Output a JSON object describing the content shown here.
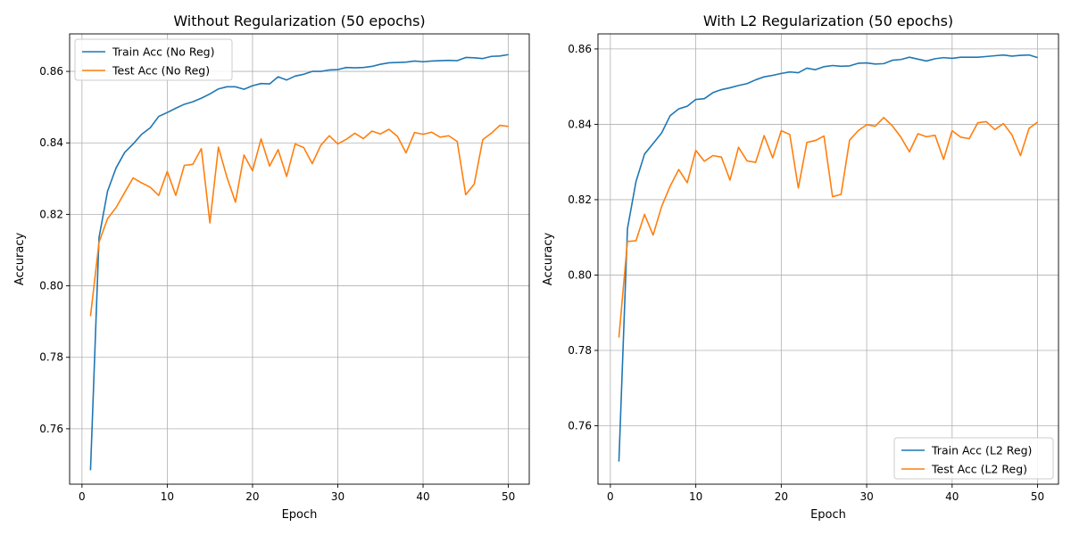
{
  "chart_data": [
    {
      "type": "line",
      "title": "Without Regularization (50 epochs)",
      "xlabel": "Epoch",
      "ylabel": "Accuracy",
      "xlim": [
        -1.45,
        52.45
      ],
      "ylim": [
        0.7445,
        0.8705
      ],
      "xticks": [
        "0",
        "10",
        "20",
        "30",
        "40",
        "50"
      ],
      "xtick_values": [
        0,
        10,
        20,
        30,
        40,
        50
      ],
      "yticks": [
        "0.76",
        "0.78",
        "0.80",
        "0.82",
        "0.84",
        "0.86"
      ],
      "ytick_values": [
        0.76,
        0.78,
        0.8,
        0.82,
        0.84,
        0.86
      ],
      "grid": true,
      "legend_loc": "upper-left",
      "x": [
        1,
        2,
        3,
        4,
        5,
        6,
        7,
        8,
        9,
        10,
        11,
        12,
        13,
        14,
        15,
        16,
        17,
        18,
        19,
        20,
        21,
        22,
        23,
        24,
        25,
        26,
        27,
        28,
        29,
        30,
        31,
        32,
        33,
        34,
        35,
        36,
        37,
        38,
        39,
        40,
        41,
        42,
        43,
        44,
        45,
        46,
        47,
        48,
        49,
        50
      ],
      "series": [
        {
          "name": "Train Acc (No Reg)",
          "color": "#1f77b4",
          "values": [
            0.7484,
            0.8135,
            0.8265,
            0.833,
            0.8373,
            0.8397,
            0.8424,
            0.8442,
            0.8474,
            0.8485,
            0.8497,
            0.8508,
            0.8515,
            0.8525,
            0.8537,
            0.8551,
            0.8557,
            0.8557,
            0.855,
            0.856,
            0.8566,
            0.8565,
            0.8585,
            0.8576,
            0.8587,
            0.8592,
            0.86,
            0.86,
            0.8604,
            0.8605,
            0.8611,
            0.861,
            0.8611,
            0.8614,
            0.862,
            0.8624,
            0.8625,
            0.8626,
            0.8629,
            0.8627,
            0.8629,
            0.863,
            0.8631,
            0.863,
            0.8639,
            0.8638,
            0.8636,
            0.8642,
            0.8643,
            0.8647
          ]
        },
        {
          "name": "Test Acc (No Reg)",
          "color": "#ff7f0e",
          "values": [
            0.7915,
            0.8122,
            0.8188,
            0.8219,
            0.8261,
            0.8302,
            0.8288,
            0.8276,
            0.8253,
            0.832,
            0.8253,
            0.8337,
            0.834,
            0.8384,
            0.8176,
            0.8388,
            0.8304,
            0.8234,
            0.8366,
            0.8322,
            0.8411,
            0.8335,
            0.8381,
            0.8306,
            0.8397,
            0.8387,
            0.8342,
            0.8393,
            0.842,
            0.8397,
            0.841,
            0.8427,
            0.8412,
            0.8433,
            0.8425,
            0.8438,
            0.8418,
            0.8372,
            0.8429,
            0.8424,
            0.843,
            0.8416,
            0.842,
            0.8404,
            0.8255,
            0.8285,
            0.8409,
            0.8427,
            0.8449,
            0.8446
          ]
        }
      ]
    },
    {
      "type": "line",
      "title": "With L2 Regularization (50 epochs)",
      "xlabel": "Epoch",
      "ylabel": "Accuracy",
      "xlim": [
        -1.45,
        52.45
      ],
      "ylim": [
        0.7445,
        0.864
      ],
      "xticks": [
        "0",
        "10",
        "20",
        "30",
        "40",
        "50"
      ],
      "xtick_values": [
        0,
        10,
        20,
        30,
        40,
        50
      ],
      "yticks": [
        "0.76",
        "0.78",
        "0.80",
        "0.82",
        "0.84",
        "0.86"
      ],
      "ytick_values": [
        0.76,
        0.78,
        0.8,
        0.82,
        0.84,
        0.86
      ],
      "grid": true,
      "legend_loc": "lower-right",
      "x": [
        1,
        2,
        3,
        4,
        5,
        6,
        7,
        8,
        9,
        10,
        11,
        12,
        13,
        14,
        15,
        16,
        17,
        18,
        19,
        20,
        21,
        22,
        23,
        24,
        25,
        26,
        27,
        28,
        29,
        30,
        31,
        32,
        33,
        34,
        35,
        36,
        37,
        38,
        39,
        40,
        41,
        42,
        43,
        44,
        45,
        46,
        47,
        48,
        49,
        50
      ],
      "series": [
        {
          "name": "Train Acc (L2 Reg)",
          "color": "#1f77b4",
          "values": [
            0.7505,
            0.8123,
            0.8248,
            0.8321,
            0.8349,
            0.8377,
            0.8423,
            0.8441,
            0.8448,
            0.8466,
            0.8468,
            0.8484,
            0.8492,
            0.8497,
            0.8503,
            0.8508,
            0.8518,
            0.8526,
            0.853,
            0.8535,
            0.8539,
            0.8537,
            0.8549,
            0.8545,
            0.8553,
            0.8556,
            0.8554,
            0.8555,
            0.8562,
            0.8563,
            0.856,
            0.8561,
            0.857,
            0.8572,
            0.8578,
            0.8573,
            0.8568,
            0.8574,
            0.8577,
            0.8575,
            0.8578,
            0.8578,
            0.8578,
            0.858,
            0.8582,
            0.8584,
            0.8581,
            0.8583,
            0.8584,
            0.8577
          ]
        },
        {
          "name": "Test Acc (L2 Reg)",
          "color": "#ff7f0e",
          "values": [
            0.7834,
            0.8089,
            0.8091,
            0.8161,
            0.8106,
            0.8182,
            0.8236,
            0.828,
            0.8245,
            0.8331,
            0.8302,
            0.8317,
            0.8313,
            0.8252,
            0.8339,
            0.8303,
            0.8299,
            0.837,
            0.8311,
            0.8383,
            0.8373,
            0.8231,
            0.8352,
            0.8357,
            0.8369,
            0.8208,
            0.8214,
            0.8358,
            0.8383,
            0.8399,
            0.8395,
            0.8418,
            0.8396,
            0.8366,
            0.8327,
            0.8375,
            0.8367,
            0.8371,
            0.8307,
            0.8383,
            0.8366,
            0.8362,
            0.8404,
            0.8407,
            0.8386,
            0.8402,
            0.8372,
            0.8317,
            0.8389,
            0.8406
          ]
        }
      ]
    }
  ]
}
